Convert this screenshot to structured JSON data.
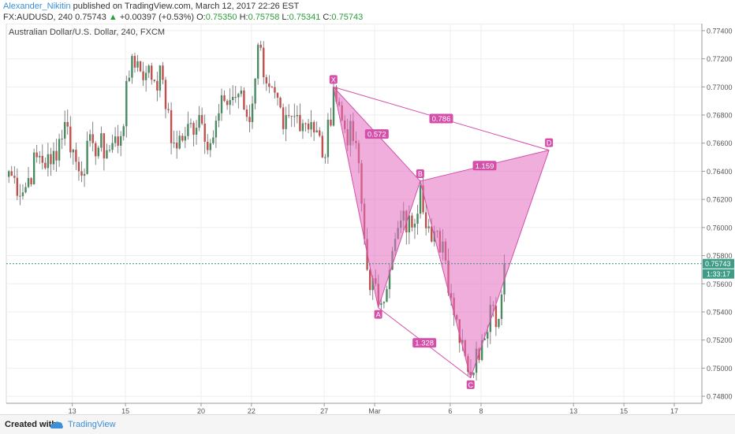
{
  "header": {
    "author": "Alexander_Nikitin",
    "published": " published on TradingView.com, March 12, 2017 22:26 EST",
    "symbol": "FX:AUDUSD, 240",
    "last": "0.75743",
    "change": "+0.00397 (+0.53%)",
    "o_label": "O:",
    "o": "0.75350",
    "h_label": "H:",
    "h": "0.75758",
    "l_label": "L:",
    "l": "0.75341",
    "c_label": "C:",
    "c": "0.75743"
  },
  "footer": {
    "created": "Created with",
    "brand": "TradingView"
  },
  "colors": {
    "up": "#4a8a62",
    "down": "#c0504d",
    "pattern": "#e16cbf",
    "pattern_line": "#d44fa9",
    "price_line": "#3a8f7a",
    "price_tag": "#3f9c86"
  },
  "chart_data": {
    "type": "candlestick",
    "title": "Australian Dollar/U.S. Dollar, 240, FXCM",
    "ylim": [
      0.7475,
      0.7745
    ],
    "y_ticks": [
      "0.77400",
      "0.77200",
      "0.77000",
      "0.76800",
      "0.76600",
      "0.76400",
      "0.76200",
      "0.76000",
      "0.75800",
      "0.75600",
      "0.75400",
      "0.75200",
      "0.75000",
      "0.74800"
    ],
    "x_ticks": [
      "13",
      "15",
      "20",
      "22",
      "27",
      "Mar",
      "6",
      "8",
      "13",
      "15",
      "17"
    ],
    "current_price": "0.75743",
    "countdown": "1:33:17",
    "grid": true,
    "pattern": {
      "name": "bat",
      "points": [
        {
          "label": "X",
          "bar": 116,
          "price": 0.77
        },
        {
          "label": "A",
          "bar": 132,
          "price": 0.7543
        },
        {
          "label": "B",
          "bar": 147,
          "price": 0.7633
        },
        {
          "label": "C",
          "bar": 165,
          "price": 0.7493
        },
        {
          "label": "D",
          "bar": 193,
          "price": 0.7655
        }
      ],
      "ratios": [
        {
          "value": "0.572",
          "legs": "XA-AB"
        },
        {
          "value": "0.786",
          "legs": "XD"
        },
        {
          "value": "1.159",
          "legs": "BD"
        },
        {
          "value": "1.328",
          "legs": "AC"
        }
      ]
    },
    "anchors": [
      {
        "bar": 0,
        "price": 0.764
      },
      {
        "bar": 5,
        "price": 0.7625
      },
      {
        "bar": 10,
        "price": 0.765
      },
      {
        "bar": 15,
        "price": 0.7645
      },
      {
        "bar": 20,
        "price": 0.7675
      },
      {
        "bar": 25,
        "price": 0.764
      },
      {
        "bar": 30,
        "price": 0.766
      },
      {
        "bar": 35,
        "price": 0.7655
      },
      {
        "bar": 40,
        "price": 0.7665
      },
      {
        "bar": 44,
        "price": 0.7722
      },
      {
        "bar": 49,
        "price": 0.771
      },
      {
        "bar": 55,
        "price": 0.7705
      },
      {
        "bar": 58,
        "price": 0.766
      },
      {
        "bar": 63,
        "price": 0.7665
      },
      {
        "bar": 68,
        "price": 0.768
      },
      {
        "bar": 72,
        "price": 0.766
      },
      {
        "bar": 77,
        "price": 0.769
      },
      {
        "bar": 82,
        "price": 0.7695
      },
      {
        "bar": 86,
        "price": 0.7675
      },
      {
        "bar": 89,
        "price": 0.773
      },
      {
        "bar": 93,
        "price": 0.77
      },
      {
        "bar": 98,
        "price": 0.767
      },
      {
        "bar": 103,
        "price": 0.768
      },
      {
        "bar": 108,
        "price": 0.7675
      },
      {
        "bar": 113,
        "price": 0.765
      },
      {
        "bar": 116,
        "price": 0.77
      },
      {
        "bar": 120,
        "price": 0.767
      },
      {
        "bar": 124,
        "price": 0.766
      },
      {
        "bar": 128,
        "price": 0.757
      },
      {
        "bar": 132,
        "price": 0.7545
      },
      {
        "bar": 136,
        "price": 0.757
      },
      {
        "bar": 140,
        "price": 0.7605
      },
      {
        "bar": 144,
        "price": 0.76
      },
      {
        "bar": 147,
        "price": 0.763
      },
      {
        "bar": 151,
        "price": 0.759
      },
      {
        "bar": 155,
        "price": 0.759
      },
      {
        "bar": 158,
        "price": 0.755
      },
      {
        "bar": 162,
        "price": 0.752
      },
      {
        "bar": 165,
        "price": 0.7495
      },
      {
        "bar": 169,
        "price": 0.752
      },
      {
        "bar": 172,
        "price": 0.7545
      },
      {
        "bar": 175,
        "price": 0.7535
      },
      {
        "bar": 177,
        "price": 0.7574
      }
    ]
  }
}
